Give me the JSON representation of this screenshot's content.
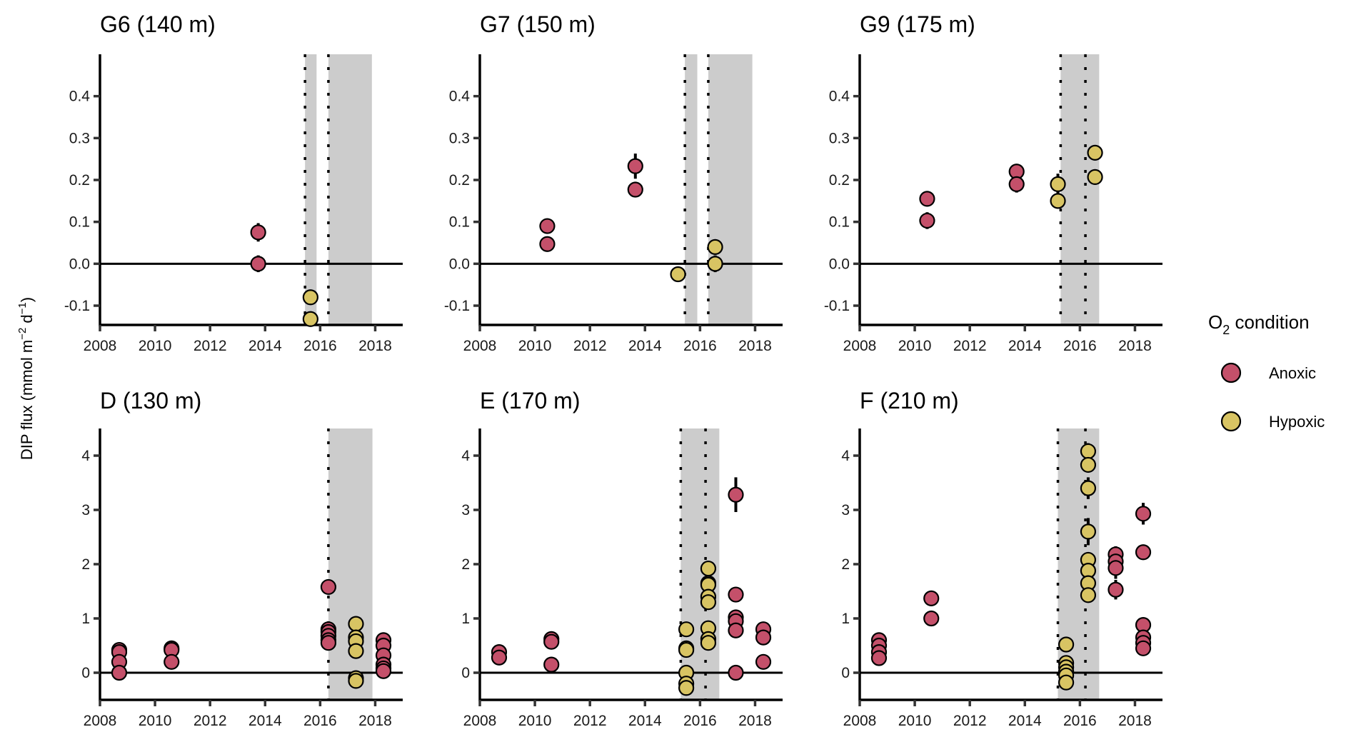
{
  "chart_data": {
    "type": "scatter",
    "ylabel": "DIP flux (mmol m⁻² d⁻¹)",
    "ylabel_parts": {
      "main": "DIP flux (mmol m",
      "sup1": "−2",
      "mid": " d",
      "sup2": "−1",
      "end": ")"
    },
    "legend": {
      "title_main": "O",
      "title_sub": "2",
      "title_rest": " condition",
      "placement": "right",
      "entries": [
        {
          "key": "anoxic",
          "label": "Anoxic",
          "color": "#c4506a"
        },
        {
          "key": "hypoxic",
          "label": "Hypoxic",
          "color": "#d8c463"
        }
      ]
    },
    "colors": {
      "anoxic": "#c4506a",
      "hypoxic": "#d8c463",
      "band": "#cccccc"
    },
    "xlim": [
      2008,
      2019
    ],
    "xticks": [
      2008,
      2010,
      2012,
      2014,
      2016,
      2018
    ],
    "panels": [
      {
        "id": "g6",
        "title": "G6 (140 m)",
        "row": 0,
        "col": 0,
        "ylim": [
          -0.146,
          0.5
        ],
        "yticks": [
          -0.1,
          0.0,
          0.1,
          0.2,
          0.3,
          0.4
        ],
        "ytick_labels": [
          "-0.1",
          "0.0",
          "0.1",
          "0.2",
          "0.3",
          "0.4"
        ],
        "bands": [
          [
            2015.45,
            2015.87
          ],
          [
            2016.3,
            2017.88
          ]
        ],
        "dotted": [
          2015.45,
          2016.3
        ],
        "points": [
          {
            "x": 2013.75,
            "y": 0.075,
            "err": 0.022,
            "cond": "anoxic"
          },
          {
            "x": 2013.75,
            "y": 0.0,
            "err": 0.02,
            "cond": "anoxic"
          },
          {
            "x": 2015.65,
            "y": -0.08,
            "err": 0,
            "cond": "hypoxic"
          },
          {
            "x": 2015.65,
            "y": -0.132,
            "err": 0,
            "cond": "hypoxic"
          }
        ]
      },
      {
        "id": "g7",
        "title": "G7 (150 m)",
        "row": 0,
        "col": 1,
        "ylim": [
          -0.146,
          0.5
        ],
        "yticks": [
          -0.1,
          0.0,
          0.1,
          0.2,
          0.3,
          0.4
        ],
        "ytick_labels": [
          "-0.1",
          "0.0",
          "0.1",
          "0.2",
          "0.3",
          "0.4"
        ],
        "bands": [
          [
            2015.45,
            2015.9
          ],
          [
            2016.3,
            2017.9
          ]
        ],
        "dotted": [
          2015.45,
          2016.3
        ],
        "points": [
          {
            "x": 2010.45,
            "y": 0.09,
            "err": 0.017,
            "cond": "anoxic"
          },
          {
            "x": 2010.45,
            "y": 0.047,
            "err": 0,
            "cond": "anoxic"
          },
          {
            "x": 2013.65,
            "y": 0.233,
            "err": 0.03,
            "cond": "anoxic"
          },
          {
            "x": 2013.65,
            "y": 0.177,
            "err": 0,
            "cond": "anoxic"
          },
          {
            "x": 2015.2,
            "y": -0.025,
            "err": 0,
            "cond": "hypoxic"
          },
          {
            "x": 2016.55,
            "y": 0.04,
            "err": 0,
            "cond": "hypoxic"
          },
          {
            "x": 2016.55,
            "y": 0.0,
            "err": 0.02,
            "cond": "hypoxic"
          }
        ]
      },
      {
        "id": "g9",
        "title": "G9 (175 m)",
        "row": 0,
        "col": 2,
        "ylim": [
          -0.146,
          0.5
        ],
        "yticks": [
          -0.1,
          0.0,
          0.1,
          0.2,
          0.3,
          0.4
        ],
        "ytick_labels": [
          "-0.1",
          "0.0",
          "0.1",
          "0.2",
          "0.3",
          "0.4"
        ],
        "bands": [
          [
            2015.3,
            2016.7
          ]
        ],
        "dotted": [
          2015.3,
          2016.2
        ],
        "points": [
          {
            "x": 2010.45,
            "y": 0.155,
            "err": 0,
            "cond": "anoxic"
          },
          {
            "x": 2010.45,
            "y": 0.103,
            "err": 0.02,
            "cond": "anoxic"
          },
          {
            "x": 2013.7,
            "y": 0.22,
            "err": 0.015,
            "cond": "anoxic"
          },
          {
            "x": 2013.7,
            "y": 0.19,
            "err": 0.02,
            "cond": "anoxic"
          },
          {
            "x": 2015.2,
            "y": 0.19,
            "err": 0.025,
            "cond": "hypoxic"
          },
          {
            "x": 2015.2,
            "y": 0.15,
            "err": 0,
            "cond": "hypoxic"
          },
          {
            "x": 2016.55,
            "y": 0.265,
            "err": 0.01,
            "cond": "hypoxic"
          },
          {
            "x": 2016.55,
            "y": 0.207,
            "err": 0,
            "cond": "hypoxic"
          }
        ]
      },
      {
        "id": "d",
        "title": "D (130 m)",
        "row": 1,
        "col": 0,
        "ylim": [
          -0.5,
          4.5
        ],
        "yticks": [
          0,
          1,
          2,
          3,
          4
        ],
        "ytick_labels": [
          "0",
          "1",
          "2",
          "3",
          "4"
        ],
        "bands": [
          [
            2016.3,
            2017.9
          ]
        ],
        "dotted": [
          2016.3
        ],
        "points": [
          {
            "x": 2008.7,
            "y": 0.42,
            "err": 0,
            "cond": "anoxic"
          },
          {
            "x": 2008.7,
            "y": 0.38,
            "err": 0,
            "cond": "anoxic"
          },
          {
            "x": 2008.7,
            "y": 0.2,
            "err": 0,
            "cond": "anoxic"
          },
          {
            "x": 2008.7,
            "y": 0.0,
            "err": 0,
            "cond": "anoxic"
          },
          {
            "x": 2010.6,
            "y": 0.45,
            "err": 0,
            "cond": "anoxic"
          },
          {
            "x": 2010.6,
            "y": 0.42,
            "err": 0,
            "cond": "anoxic"
          },
          {
            "x": 2010.6,
            "y": 0.2,
            "err": 0,
            "cond": "anoxic"
          },
          {
            "x": 2016.3,
            "y": 1.58,
            "err": 0,
            "cond": "anoxic"
          },
          {
            "x": 2016.3,
            "y": 0.8,
            "err": 0,
            "cond": "anoxic"
          },
          {
            "x": 2016.3,
            "y": 0.75,
            "err": 0,
            "cond": "anoxic"
          },
          {
            "x": 2016.3,
            "y": 0.68,
            "err": 0,
            "cond": "anoxic"
          },
          {
            "x": 2016.3,
            "y": 0.6,
            "err": 0,
            "cond": "anoxic"
          },
          {
            "x": 2016.3,
            "y": 0.55,
            "err": 0,
            "cond": "anoxic"
          },
          {
            "x": 2017.3,
            "y": 0.9,
            "err": 0,
            "cond": "hypoxic"
          },
          {
            "x": 2017.3,
            "y": 0.65,
            "err": 0,
            "cond": "hypoxic"
          },
          {
            "x": 2017.3,
            "y": 0.58,
            "err": 0,
            "cond": "hypoxic"
          },
          {
            "x": 2017.3,
            "y": 0.4,
            "err": 0,
            "cond": "hypoxic"
          },
          {
            "x": 2017.3,
            "y": -0.1,
            "err": 0,
            "cond": "hypoxic"
          },
          {
            "x": 2017.3,
            "y": -0.15,
            "err": 0,
            "cond": "hypoxic"
          },
          {
            "x": 2018.3,
            "y": 0.6,
            "err": 0,
            "cond": "anoxic"
          },
          {
            "x": 2018.3,
            "y": 0.5,
            "err": 0,
            "cond": "anoxic"
          },
          {
            "x": 2018.3,
            "y": 0.32,
            "err": 0,
            "cond": "anoxic"
          },
          {
            "x": 2018.3,
            "y": 0.15,
            "err": 0,
            "cond": "anoxic"
          },
          {
            "x": 2018.3,
            "y": 0.08,
            "err": 0,
            "cond": "anoxic"
          },
          {
            "x": 2018.3,
            "y": 0.03,
            "err": 0,
            "cond": "anoxic"
          }
        ]
      },
      {
        "id": "e",
        "title": "E (170 m)",
        "row": 1,
        "col": 1,
        "ylim": [
          -0.5,
          4.5
        ],
        "yticks": [
          0,
          1,
          2,
          3,
          4
        ],
        "ytick_labels": [
          "0",
          "1",
          "2",
          "3",
          "4"
        ],
        "bands": [
          [
            2015.3,
            2016.7
          ]
        ],
        "dotted": [
          2015.3,
          2016.2
        ],
        "points": [
          {
            "x": 2008.7,
            "y": 0.38,
            "err": 0,
            "cond": "anoxic"
          },
          {
            "x": 2008.7,
            "y": 0.28,
            "err": 0,
            "cond": "anoxic"
          },
          {
            "x": 2010.6,
            "y": 0.62,
            "err": 0,
            "cond": "anoxic"
          },
          {
            "x": 2010.6,
            "y": 0.57,
            "err": 0,
            "cond": "anoxic"
          },
          {
            "x": 2010.6,
            "y": 0.15,
            "err": 0,
            "cond": "anoxic"
          },
          {
            "x": 2015.5,
            "y": 0.8,
            "err": 0,
            "cond": "hypoxic"
          },
          {
            "x": 2015.5,
            "y": 0.45,
            "err": 0,
            "cond": "hypoxic"
          },
          {
            "x": 2015.5,
            "y": 0.42,
            "err": 0,
            "cond": "hypoxic"
          },
          {
            "x": 2015.5,
            "y": 0.0,
            "err": 0,
            "cond": "hypoxic"
          },
          {
            "x": 2015.5,
            "y": -0.2,
            "err": 0,
            "cond": "hypoxic"
          },
          {
            "x": 2015.5,
            "y": -0.28,
            "err": 0,
            "cond": "hypoxic"
          },
          {
            "x": 2016.3,
            "y": 1.92,
            "err": 0,
            "cond": "hypoxic"
          },
          {
            "x": 2016.3,
            "y": 1.65,
            "err": 0,
            "cond": "hypoxic"
          },
          {
            "x": 2016.3,
            "y": 1.62,
            "err": 0,
            "cond": "hypoxic"
          },
          {
            "x": 2016.3,
            "y": 1.4,
            "err": 0,
            "cond": "hypoxic"
          },
          {
            "x": 2016.3,
            "y": 1.3,
            "err": 0,
            "cond": "hypoxic"
          },
          {
            "x": 2016.3,
            "y": 0.82,
            "err": 0,
            "cond": "hypoxic"
          },
          {
            "x": 2016.3,
            "y": 0.62,
            "err": 0,
            "cond": "hypoxic"
          },
          {
            "x": 2016.3,
            "y": 0.55,
            "err": 0,
            "cond": "hypoxic"
          },
          {
            "x": 2017.3,
            "y": 3.28,
            "err": 0.32,
            "cond": "anoxic"
          },
          {
            "x": 2017.3,
            "y": 1.44,
            "err": 0,
            "cond": "anoxic"
          },
          {
            "x": 2017.3,
            "y": 1.02,
            "err": 0,
            "cond": "anoxic"
          },
          {
            "x": 2017.3,
            "y": 0.95,
            "err": 0,
            "cond": "anoxic"
          },
          {
            "x": 2017.3,
            "y": 0.78,
            "err": 0,
            "cond": "anoxic"
          },
          {
            "x": 2017.3,
            "y": 0.0,
            "err": 0,
            "cond": "anoxic"
          },
          {
            "x": 2018.3,
            "y": 0.8,
            "err": 0,
            "cond": "anoxic"
          },
          {
            "x": 2018.3,
            "y": 0.65,
            "err": 0,
            "cond": "anoxic"
          },
          {
            "x": 2018.3,
            "y": 0.2,
            "err": 0,
            "cond": "anoxic"
          }
        ]
      },
      {
        "id": "f",
        "title": "F (210 m)",
        "row": 1,
        "col": 2,
        "ylim": [
          -0.5,
          4.5
        ],
        "yticks": [
          0,
          1,
          2,
          3,
          4
        ],
        "ytick_labels": [
          "0",
          "1",
          "2",
          "3",
          "4"
        ],
        "bands": [
          [
            2015.2,
            2016.7
          ]
        ],
        "dotted": [
          2015.2,
          2016.2
        ],
        "points": [
          {
            "x": 2008.7,
            "y": 0.6,
            "err": 0,
            "cond": "anoxic"
          },
          {
            "x": 2008.7,
            "y": 0.5,
            "err": 0,
            "cond": "anoxic"
          },
          {
            "x": 2008.7,
            "y": 0.38,
            "err": 0,
            "cond": "anoxic"
          },
          {
            "x": 2008.7,
            "y": 0.27,
            "err": 0,
            "cond": "anoxic"
          },
          {
            "x": 2010.6,
            "y": 1.37,
            "err": 0,
            "cond": "anoxic"
          },
          {
            "x": 2010.6,
            "y": 1.0,
            "err": 0,
            "cond": "anoxic"
          },
          {
            "x": 2015.5,
            "y": 0.52,
            "err": 0,
            "cond": "hypoxic"
          },
          {
            "x": 2015.5,
            "y": 0.18,
            "err": 0,
            "cond": "hypoxic"
          },
          {
            "x": 2015.5,
            "y": 0.1,
            "err": 0,
            "cond": "hypoxic"
          },
          {
            "x": 2015.5,
            "y": 0.02,
            "err": 0,
            "cond": "hypoxic"
          },
          {
            "x": 2015.5,
            "y": -0.05,
            "err": 0,
            "cond": "hypoxic"
          },
          {
            "x": 2015.5,
            "y": -0.18,
            "err": 0,
            "cond": "hypoxic"
          },
          {
            "x": 2016.3,
            "y": 4.08,
            "err": 0.15,
            "cond": "hypoxic"
          },
          {
            "x": 2016.3,
            "y": 3.83,
            "err": 0,
            "cond": "hypoxic"
          },
          {
            "x": 2016.3,
            "y": 3.4,
            "err": 0.2,
            "cond": "hypoxic"
          },
          {
            "x": 2016.3,
            "y": 2.6,
            "err": 0.25,
            "cond": "hypoxic"
          },
          {
            "x": 2016.3,
            "y": 2.08,
            "err": 0,
            "cond": "hypoxic"
          },
          {
            "x": 2016.3,
            "y": 1.88,
            "err": 0,
            "cond": "hypoxic"
          },
          {
            "x": 2016.3,
            "y": 1.65,
            "err": 0,
            "cond": "hypoxic"
          },
          {
            "x": 2016.3,
            "y": 1.43,
            "err": 0,
            "cond": "hypoxic"
          },
          {
            "x": 2017.3,
            "y": 2.18,
            "err": 0.15,
            "cond": "anoxic"
          },
          {
            "x": 2017.3,
            "y": 2.05,
            "err": 0,
            "cond": "anoxic"
          },
          {
            "x": 2017.3,
            "y": 1.93,
            "err": 0.2,
            "cond": "anoxic"
          },
          {
            "x": 2017.3,
            "y": 1.53,
            "err": 0.18,
            "cond": "anoxic"
          },
          {
            "x": 2018.3,
            "y": 2.93,
            "err": 0.2,
            "cond": "anoxic"
          },
          {
            "x": 2018.3,
            "y": 2.22,
            "err": 0,
            "cond": "anoxic"
          },
          {
            "x": 2018.3,
            "y": 0.88,
            "err": 0,
            "cond": "anoxic"
          },
          {
            "x": 2018.3,
            "y": 0.65,
            "err": 0,
            "cond": "anoxic"
          },
          {
            "x": 2018.3,
            "y": 0.55,
            "err": 0,
            "cond": "anoxic"
          },
          {
            "x": 2018.3,
            "y": 0.45,
            "err": 0,
            "cond": "anoxic"
          }
        ]
      }
    ]
  }
}
